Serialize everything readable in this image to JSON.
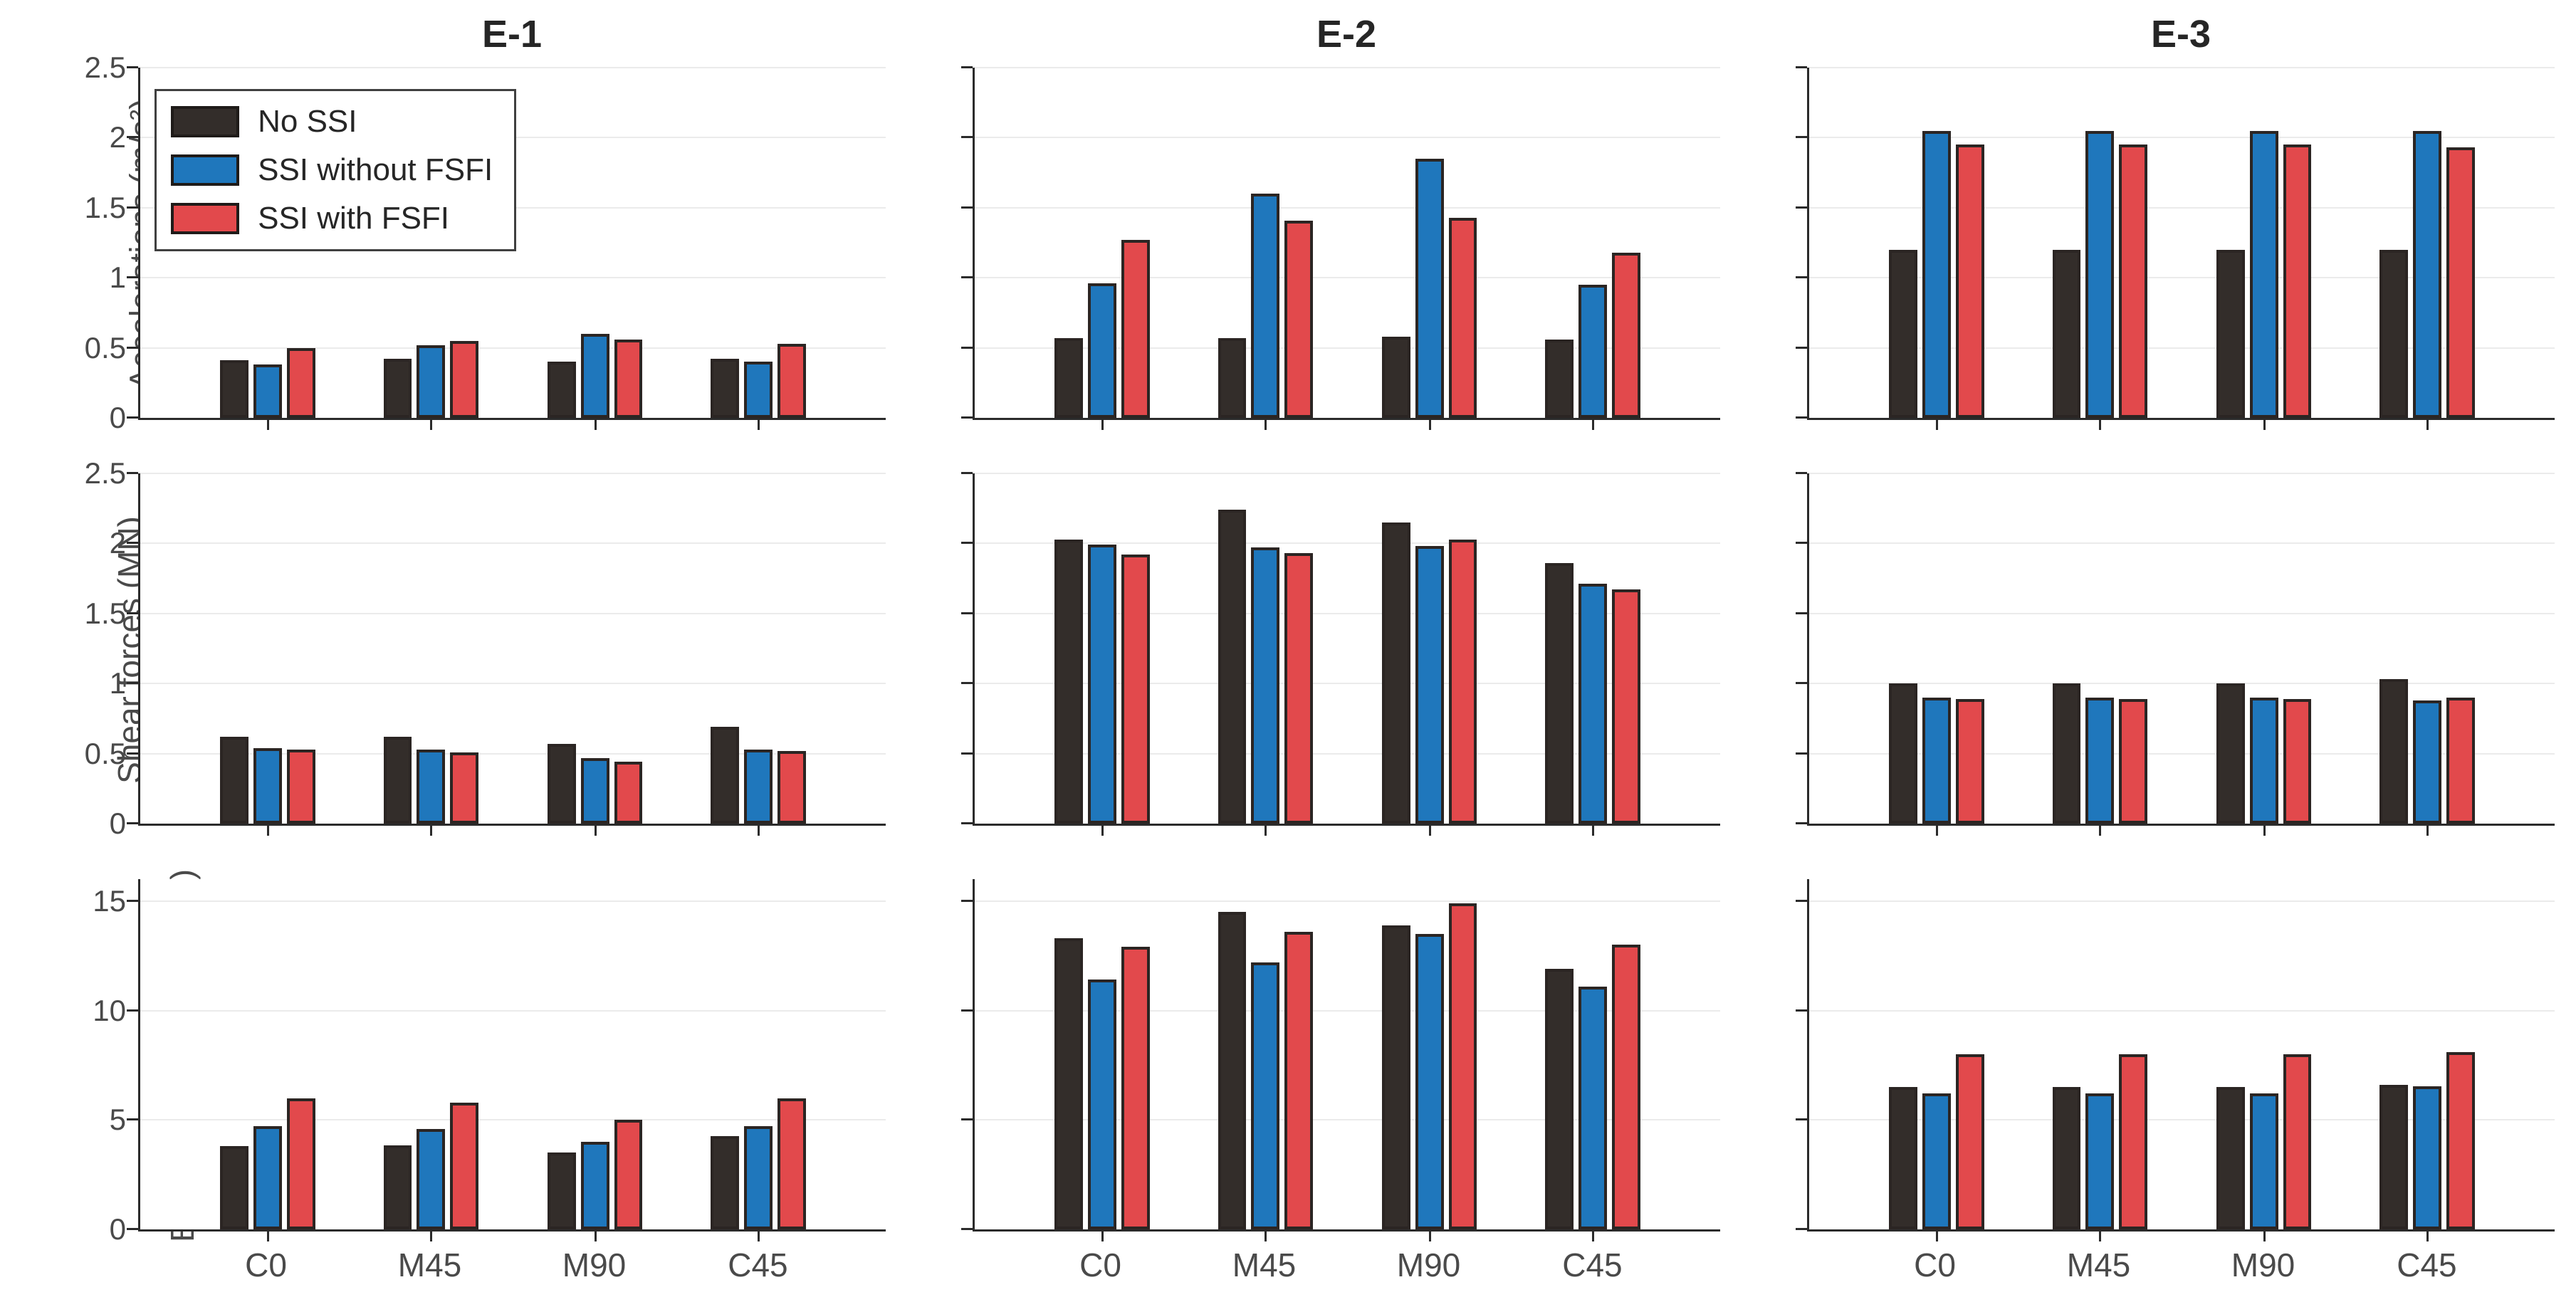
{
  "figure": {
    "background": "#ffffff",
    "titles": [
      "E-1",
      "E-2",
      "E-3"
    ]
  },
  "chart_data": {
    "type": "bar",
    "layout": "3x3 grid of grouped bar subplots; columns share titles E-1/E-2/E-3, rows share y-axes; horizontal gridlines on; legend in top-left subplot",
    "categories": [
      "C0",
      "M45",
      "M90",
      "C45"
    ],
    "columns": [
      "E-1",
      "E-2",
      "E-3"
    ],
    "series": [
      {
        "name": "No SSI",
        "key": "no-ssi",
        "color": "#332d2a"
      },
      {
        "name": "SSI without FSFI",
        "key": "ssi-without-fsfi",
        "color": "#1f77bc"
      },
      {
        "name": "SSI with FSFI",
        "key": "ssi-with-fsfi",
        "color": "#e2494c"
      }
    ],
    "rows": [
      {
        "ylabel": "Accelerations (m/s²)",
        "ylim": [
          0,
          2.5
        ],
        "yticks": [
          0,
          0.5,
          1,
          1.5,
          2,
          2.5
        ],
        "ytick_labels": [
          "0",
          "0.5",
          "1",
          "1.5",
          "2",
          "2.5"
        ]
      },
      {
        "ylabel": "Shear forces (MN)",
        "ylim": [
          0,
          2.5
        ],
        "yticks": [
          0,
          0.5,
          1,
          1.5,
          2,
          2.5
        ],
        "ytick_labels": [
          "0",
          "0.5",
          "1",
          "1.5",
          "2",
          "2.5"
        ]
      },
      {
        "ylabel": "Bending Moments (MNm)",
        "ylim": [
          0,
          16
        ],
        "yticks": [
          0,
          5,
          10,
          15
        ],
        "ytick_labels": [
          "0",
          "5",
          "10",
          "15"
        ]
      }
    ],
    "values": [
      [
        [
          [
            0.41,
            0.42,
            0.4,
            0.42
          ],
          [
            0.38,
            0.52,
            0.6,
            0.4
          ],
          [
            0.5,
            0.55,
            0.56,
            0.53
          ]
        ],
        [
          [
            0.57,
            0.57,
            0.58,
            0.56
          ],
          [
            0.96,
            1.6,
            1.85,
            0.95
          ],
          [
            1.27,
            1.41,
            1.43,
            1.18
          ]
        ],
        [
          [
            1.2,
            1.2,
            1.2,
            1.2
          ],
          [
            2.05,
            2.05,
            2.05,
            2.05
          ],
          [
            1.95,
            1.95,
            1.95,
            1.93
          ]
        ]
      ],
      [
        [
          [
            0.62,
            0.62,
            0.57,
            0.69
          ],
          [
            0.54,
            0.53,
            0.47,
            0.53
          ],
          [
            0.53,
            0.51,
            0.44,
            0.52
          ]
        ],
        [
          [
            2.03,
            2.24,
            2.15,
            1.86
          ],
          [
            1.99,
            1.97,
            1.98,
            1.71
          ],
          [
            1.92,
            1.93,
            2.03,
            1.67
          ]
        ],
        [
          [
            1.0,
            1.0,
            1.0,
            1.03
          ],
          [
            0.9,
            0.9,
            0.9,
            0.88
          ],
          [
            0.89,
            0.89,
            0.89,
            0.9
          ]
        ]
      ],
      [
        [
          [
            3.8,
            3.85,
            3.5,
            4.25
          ],
          [
            4.7,
            4.6,
            4.0,
            4.7
          ],
          [
            6.0,
            5.8,
            5.0,
            6.0
          ]
        ],
        [
          [
            13.3,
            14.5,
            13.9,
            11.9
          ],
          [
            11.4,
            12.2,
            13.5,
            11.1
          ],
          [
            12.9,
            13.6,
            14.9,
            13.0
          ]
        ],
        [
          [
            6.5,
            6.5,
            6.5,
            6.6
          ],
          [
            6.2,
            6.2,
            6.2,
            6.55
          ],
          [
            8.0,
            8.0,
            8.0,
            8.1
          ]
        ]
      ]
    ],
    "style": {
      "grid_color": "#ebebeb",
      "axis_color": "#2b2b2b",
      "bar_edge_color": "#2b2523",
      "tick_label_color": "#4a4a4a",
      "title_color": "#262626"
    },
    "legend_position": "top-left of first subplot"
  }
}
